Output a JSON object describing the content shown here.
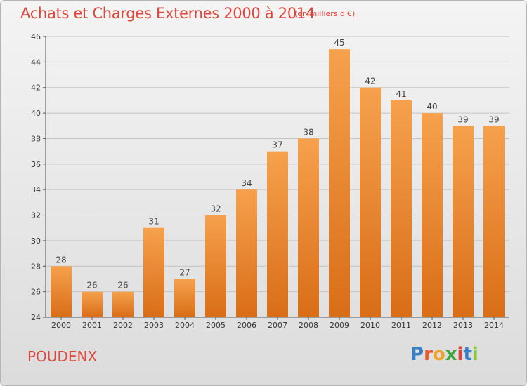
{
  "header": {
    "title": "Achats et Charges Externes 2000 à 2014",
    "unit": "(en milliers d'€)"
  },
  "footer": {
    "place": "POUDENX",
    "logo_letters": [
      "P",
      "r",
      "o",
      "x",
      "i",
      "t",
      "i"
    ],
    "logo_colors": [
      "#3a7fc4",
      "#e8572a",
      "#f2a12a",
      "#3fa63a",
      "#e0453c",
      "#3a7fc4",
      "#8cc63f"
    ]
  },
  "colors": {
    "bar_light": "#f6a14d",
    "bar_dark": "#d96d17",
    "title": "#e0453c"
  },
  "chart_data": {
    "type": "bar",
    "title": "Achats et Charges Externes 2000 à 2014",
    "subtitle": "(en milliers d'€)",
    "categories": [
      "2000",
      "2001",
      "2002",
      "2003",
      "2004",
      "2005",
      "2006",
      "2007",
      "2008",
      "2009",
      "2010",
      "2011",
      "2012",
      "2013",
      "2014"
    ],
    "values": [
      28,
      26,
      26,
      31,
      27,
      32,
      34,
      37,
      38,
      45,
      42,
      41,
      40,
      39,
      39
    ],
    "ylim": [
      24,
      46
    ],
    "yticks": [
      24,
      26,
      28,
      30,
      32,
      34,
      36,
      38,
      40,
      42,
      44,
      46
    ],
    "grid": "horizontal",
    "data_labels": true
  }
}
